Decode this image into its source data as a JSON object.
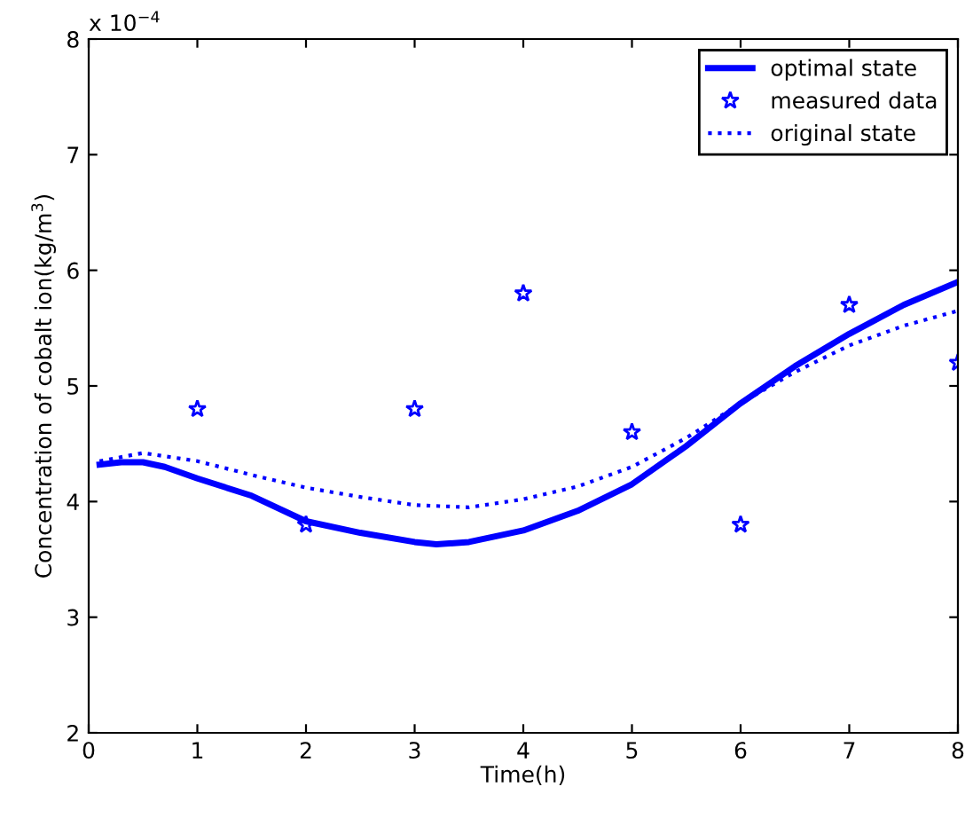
{
  "chart_data": {
    "type": "line",
    "xlabel": "Time(h)",
    "ylabel": "Concentration of cobalt ion(kg/m$^{3}$)",
    "annotations": [
      "x 10$^{−4}$"
    ],
    "xlim": [
      0,
      8
    ],
    "xticks": [
      0,
      1,
      2,
      3,
      4,
      5,
      6,
      7,
      8
    ],
    "ylim": [
      2,
      8
    ],
    "yticks": [
      2,
      3,
      4,
      5,
      6,
      7,
      8
    ],
    "grid": false,
    "legend": "top right",
    "series": [
      {
        "name": "optimal state",
        "color": "#0000ff",
        "line_style": "solid",
        "marker": "none",
        "x": [
          0.1,
          0.3,
          0.5,
          0.7,
          1,
          1.5,
          2,
          2.5,
          3,
          3.2,
          3.5,
          4,
          4.5,
          5,
          5.5,
          6,
          6.5,
          7,
          7.5,
          8
        ],
        "values": [
          4.32,
          4.34,
          4.34,
          4.3,
          4.2,
          4.05,
          3.83,
          3.73,
          3.65,
          3.63,
          3.65,
          3.75,
          3.92,
          4.15,
          4.48,
          4.85,
          5.17,
          5.45,
          5.7,
          5.9
        ]
      },
      {
        "name": "measured data",
        "type": "scatter",
        "color": "#0000ff",
        "marker": "star",
        "x": [
          1,
          2,
          3,
          4,
          5,
          6,
          7,
          8
        ],
        "values": [
          4.8,
          3.8,
          4.8,
          5.8,
          4.6,
          3.8,
          5.7,
          5.2
        ]
      },
      {
        "name": "original state",
        "color": "#0000ff",
        "line_style": "dotted",
        "marker": "none",
        "x": [
          0.1,
          0.5,
          1,
          1.5,
          2,
          2.5,
          3,
          3.5,
          4,
          4.5,
          5,
          5.5,
          6,
          6.5,
          7,
          7.5,
          8
        ],
        "values": [
          4.35,
          4.42,
          4.35,
          4.23,
          4.12,
          4.04,
          3.97,
          3.95,
          4.02,
          4.13,
          4.3,
          4.55,
          4.85,
          5.12,
          5.35,
          5.52,
          5.65
        ]
      }
    ]
  }
}
